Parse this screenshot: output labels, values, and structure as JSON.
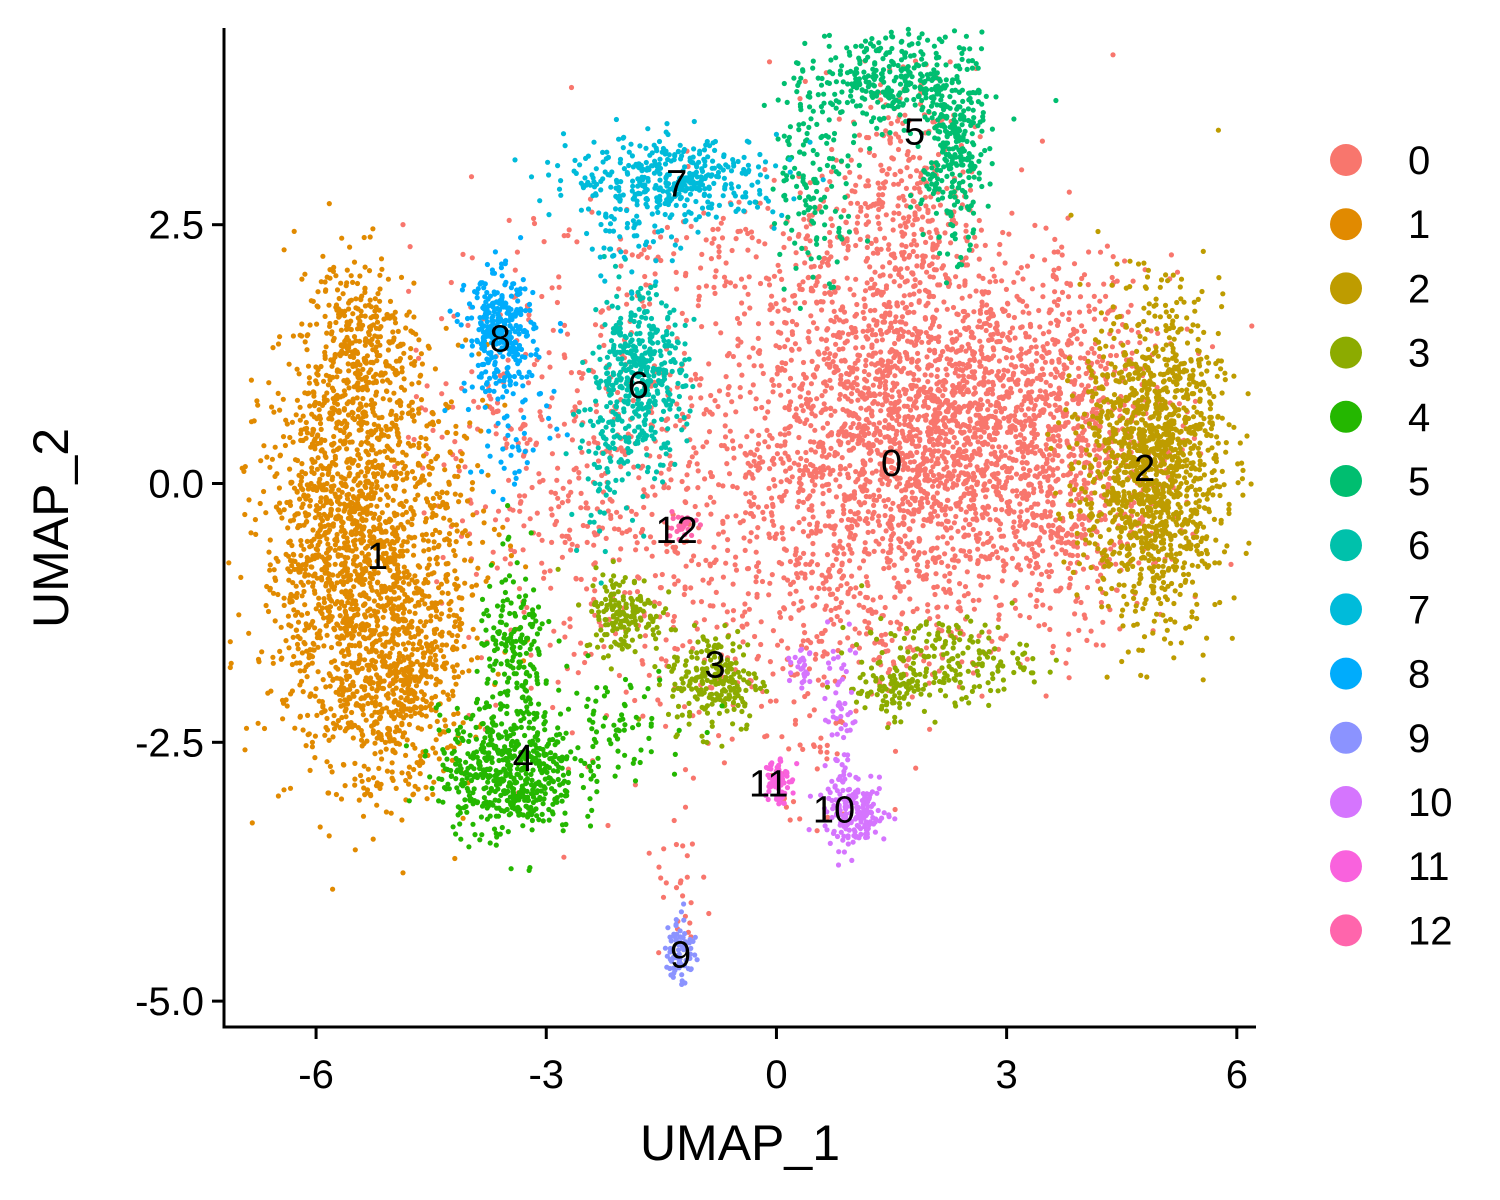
{
  "chart_data": {
    "type": "scatter",
    "xlabel": "UMAP_1",
    "ylabel": "UMAP_2",
    "xlim": [
      -7.2,
      6.25
    ],
    "ylim": [
      -5.25,
      4.4
    ],
    "x_ticks": [
      -6,
      -3,
      0,
      3,
      6
    ],
    "x_tick_labels": [
      "-6",
      "-3",
      "0",
      "3",
      "6"
    ],
    "y_ticks": [
      -5.0,
      -2.5,
      0.0,
      2.5
    ],
    "y_tick_labels": [
      "-5.0",
      "-2.5",
      "0.0",
      "2.5"
    ],
    "grid": false,
    "legend_position": "right",
    "clusters": [
      {
        "name": "0",
        "color": "#F8766D",
        "label_x": 1.5,
        "label_y": 0.2
      },
      {
        "name": "1",
        "color": "#E18A00",
        "label_x": -5.2,
        "label_y": -0.7
      },
      {
        "name": "2",
        "color": "#BE9C00",
        "label_x": 4.8,
        "label_y": 0.15
      },
      {
        "name": "3",
        "color": "#8CAB00",
        "label_x": -0.8,
        "label_y": -1.75
      },
      {
        "name": "4",
        "color": "#24B700",
        "label_x": -3.3,
        "label_y": -2.65
      },
      {
        "name": "5",
        "color": "#00BE70",
        "label_x": 1.8,
        "label_y": 3.4
      },
      {
        "name": "6",
        "color": "#00C1AB",
        "label_x": -1.8,
        "label_y": 0.95
      },
      {
        "name": "7",
        "color": "#00BBDA",
        "label_x": -1.3,
        "label_y": 2.9
      },
      {
        "name": "8",
        "color": "#00ACFC",
        "label_x": -3.6,
        "label_y": 1.4
      },
      {
        "name": "9",
        "color": "#8B93FF",
        "label_x": -1.25,
        "label_y": -4.55
      },
      {
        "name": "10",
        "color": "#D575FE",
        "label_x": 0.75,
        "label_y": -3.15
      },
      {
        "name": "11",
        "color": "#F962DD",
        "label_x": -0.1,
        "label_y": -2.9
      },
      {
        "name": "12",
        "color": "#FF65AC",
        "label_x": -1.3,
        "label_y": -0.45
      }
    ],
    "point_groups": [
      {
        "cluster": "0",
        "n": 2600,
        "cx": 1.9,
        "cy": 0.5,
        "sx": 1.3,
        "sy": 0.85
      },
      {
        "cluster": "0",
        "n": 600,
        "cx": 3.8,
        "cy": 0.3,
        "sx": 0.7,
        "sy": 0.8
      },
      {
        "cluster": "0",
        "n": 350,
        "cx": 1.6,
        "cy": 2.6,
        "sx": 0.5,
        "sy": 0.7
      },
      {
        "cluster": "0",
        "n": 450,
        "cx": -1.4,
        "cy": -0.6,
        "sx": 1.3,
        "sy": 1.0
      },
      {
        "cluster": "0",
        "n": 250,
        "cx": -3.0,
        "cy": 0.6,
        "sx": 0.9,
        "sy": 0.9
      },
      {
        "cluster": "0",
        "n": 120,
        "cx": -0.8,
        "cy": 2.2,
        "sx": 0.8,
        "sy": 0.35
      },
      {
        "cluster": "0",
        "n": 160,
        "cx": 1.2,
        "cy": -1.5,
        "sx": 1.0,
        "sy": 0.4
      },
      {
        "cluster": "0",
        "n": 30,
        "cx": 0.6,
        "cy": -2.7,
        "sx": 0.25,
        "sy": 0.4
      },
      {
        "cluster": "0",
        "n": 25,
        "cx": -1.2,
        "cy": -4.0,
        "sx": 0.2,
        "sy": 0.3
      },
      {
        "cluster": "1",
        "n": 1500,
        "cx": -5.6,
        "cy": -0.6,
        "sx": 0.55,
        "sy": 1.0
      },
      {
        "cluster": "1",
        "n": 500,
        "cx": -4.9,
        "cy": -1.9,
        "sx": 0.45,
        "sy": 0.55
      },
      {
        "cluster": "1",
        "n": 300,
        "cx": -5.4,
        "cy": 1.3,
        "sx": 0.35,
        "sy": 0.45
      },
      {
        "cluster": "1",
        "n": 250,
        "cx": -4.5,
        "cy": -0.6,
        "sx": 0.5,
        "sy": 0.8
      },
      {
        "cluster": "2",
        "n": 1400,
        "cx": 4.9,
        "cy": 0.2,
        "sx": 0.45,
        "sy": 0.75
      },
      {
        "cluster": "3",
        "n": 220,
        "cx": -0.8,
        "cy": -1.9,
        "sx": 0.3,
        "sy": 0.25
      },
      {
        "cluster": "3",
        "n": 160,
        "cx": -2.0,
        "cy": -1.25,
        "sx": 0.25,
        "sy": 0.2
      },
      {
        "cluster": "3",
        "n": 180,
        "cx": 2.2,
        "cy": -1.7,
        "sx": 0.55,
        "sy": 0.2
      },
      {
        "cluster": "3",
        "n": 80,
        "cx": 1.5,
        "cy": -2.0,
        "sx": 0.25,
        "sy": 0.12
      },
      {
        "cluster": "4",
        "n": 550,
        "cx": -3.5,
        "cy": -2.8,
        "sx": 0.45,
        "sy": 0.3
      },
      {
        "cluster": "4",
        "n": 200,
        "cx": -3.4,
        "cy": -1.7,
        "sx": 0.25,
        "sy": 0.45
      },
      {
        "cluster": "4",
        "n": 80,
        "cx": -2.2,
        "cy": -2.3,
        "sx": 0.5,
        "sy": 0.25
      },
      {
        "cluster": "5",
        "n": 300,
        "cx": 1.5,
        "cy": 3.9,
        "sx": 0.5,
        "sy": 0.22
      },
      {
        "cluster": "5",
        "n": 300,
        "cx": 2.3,
        "cy": 3.2,
        "sx": 0.2,
        "sy": 0.45
      },
      {
        "cluster": "5",
        "n": 150,
        "cx": 0.5,
        "cy": 3.05,
        "sx": 0.3,
        "sy": 0.5
      },
      {
        "cluster": "6",
        "n": 420,
        "cx": -1.8,
        "cy": 1.05,
        "sx": 0.3,
        "sy": 0.4
      },
      {
        "cluster": "6",
        "n": 70,
        "cx": -2.2,
        "cy": 0.2,
        "sx": 0.25,
        "sy": 0.35
      },
      {
        "cluster": "7",
        "n": 380,
        "cx": -1.3,
        "cy": 2.95,
        "sx": 0.7,
        "sy": 0.2
      },
      {
        "cluster": "7",
        "n": 60,
        "cx": -1.9,
        "cy": 2.45,
        "sx": 0.35,
        "sy": 0.25
      },
      {
        "cluster": "8",
        "n": 320,
        "cx": -3.6,
        "cy": 1.45,
        "sx": 0.22,
        "sy": 0.28
      },
      {
        "cluster": "8",
        "n": 50,
        "cx": -3.4,
        "cy": 0.6,
        "sx": 0.3,
        "sy": 0.4
      },
      {
        "cluster": "9",
        "n": 70,
        "cx": -1.25,
        "cy": -4.5,
        "sx": 0.1,
        "sy": 0.17
      },
      {
        "cluster": "10",
        "n": 160,
        "cx": 1.05,
        "cy": -3.2,
        "sx": 0.2,
        "sy": 0.15
      },
      {
        "cluster": "10",
        "n": 70,
        "cx": 0.8,
        "cy": -2.4,
        "sx": 0.12,
        "sy": 0.45
      },
      {
        "cluster": "10",
        "n": 25,
        "cx": 0.35,
        "cy": -1.75,
        "sx": 0.07,
        "sy": 0.12
      },
      {
        "cluster": "11",
        "n": 80,
        "cx": 0.0,
        "cy": -2.85,
        "sx": 0.08,
        "sy": 0.12
      },
      {
        "cluster": "12",
        "n": 25,
        "cx": -1.25,
        "cy": -0.4,
        "sx": 0.1,
        "sy": 0.08
      }
    ]
  }
}
